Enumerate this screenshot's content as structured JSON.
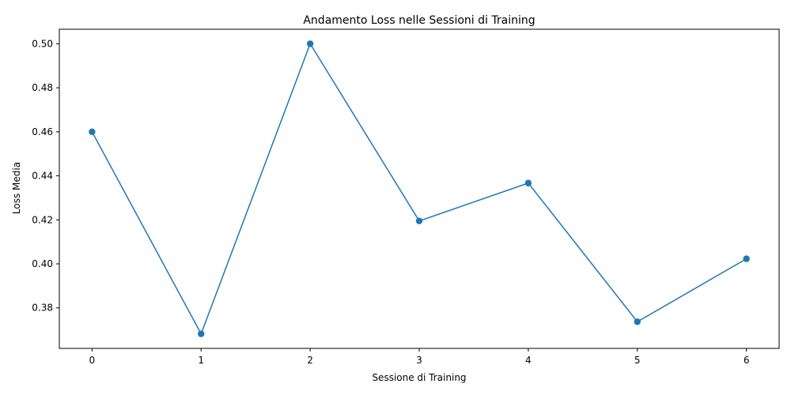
{
  "chart_data": {
    "type": "line",
    "title": "Andamento Loss nelle Sessioni di Training",
    "xlabel": "Sessione di Training",
    "ylabel": "Loss Media",
    "x": [
      0,
      1,
      2,
      3,
      4,
      5,
      6
    ],
    "series": [
      {
        "values": [
          0.46,
          0.3682,
          0.5,
          0.4195,
          0.4367,
          0.3737,
          0.4023
        ],
        "color": "#1f77b4",
        "marker": "circle"
      }
    ],
    "xticks": [
      0,
      1,
      2,
      3,
      4,
      5,
      6
    ],
    "xtick_labels": [
      "0",
      "1",
      "2",
      "3",
      "4",
      "5",
      "6"
    ],
    "yticks": [
      0.38,
      0.4,
      0.42,
      0.44,
      0.46,
      0.48,
      0.5
    ],
    "ytick_labels": [
      "0.38",
      "0.40",
      "0.42",
      "0.44",
      "0.46",
      "0.48",
      "0.50"
    ],
    "xlim": [
      -0.3,
      6.3
    ],
    "ylim": [
      0.3616,
      0.5066
    ],
    "grid": false,
    "legend": false
  }
}
